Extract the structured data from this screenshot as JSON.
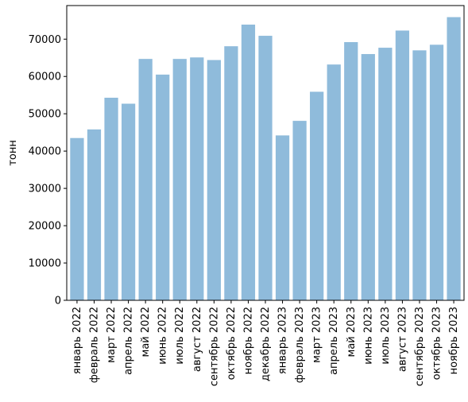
{
  "chart_data": {
    "type": "bar",
    "ylabel": "тонн",
    "xlabel": "",
    "title": "",
    "bar_color": "#8fbbdb",
    "axis_color": "#000000",
    "grid": false,
    "legend": "none",
    "ylim": [
      0,
      79000
    ],
    "yticks": [
      0,
      10000,
      20000,
      30000,
      40000,
      50000,
      60000,
      70000
    ],
    "categories": [
      "январь 2022",
      "февраль 2022",
      "март 2022",
      "апрель 2022",
      "май 2022",
      "июнь 2022",
      "июль 2022",
      "август 2022",
      "сентябрь 2022",
      "октябрь 2022",
      "ноябрь 2022",
      "декабрь 2022",
      "январь 2023",
      "февраль 2023",
      "март 2023",
      "апрель 2023",
      "май 2023",
      "июнь 2023",
      "июль 2023",
      "август 2023",
      "сентябрь 2023",
      "октябрь 2023",
      "ноябрь 2023"
    ],
    "values": [
      43500,
      45800,
      54300,
      52700,
      64700,
      60500,
      64700,
      65100,
      64400,
      68100,
      73900,
      70900,
      44200,
      48100,
      55900,
      63200,
      69200,
      66000,
      67700,
      72300,
      67000,
      68500,
      75900
    ]
  }
}
